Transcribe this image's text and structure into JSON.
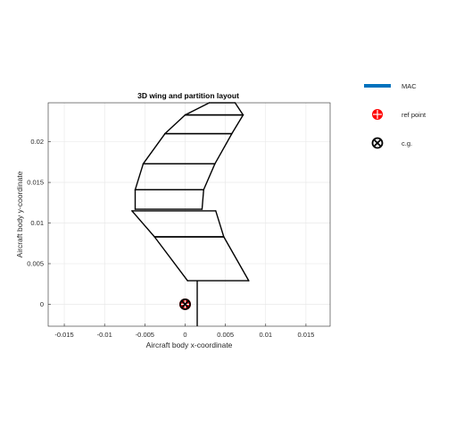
{
  "chart_data": {
    "type": "line",
    "title": "3D wing and partition layout",
    "xlabel": "Aircraft body x-coordinate",
    "ylabel": "Aircraft body y-coordinate",
    "xlim": [
      -0.017,
      0.018
    ],
    "ylim": [
      -0.0027,
      0.0248
    ],
    "xticks": [
      -0.015,
      -0.01,
      -0.005,
      0,
      0.005,
      0.01,
      0.015
    ],
    "xtick_labels": [
      "-0.015",
      "-0.01",
      "-0.005",
      "0",
      "0.005",
      "0.01",
      "0.015"
    ],
    "yticks": [
      0,
      0.005,
      0.01,
      0.015,
      0.02
    ],
    "ytick_labels": [
      "0",
      "0.005",
      "0.01",
      "0.015",
      "0.02"
    ],
    "grid": true,
    "legend_position": "outside-right",
    "legend": [
      {
        "label": "MAC",
        "marker": "thick-line",
        "color": "#0072BD"
      },
      {
        "label": "ref point",
        "marker": "circle-plus",
        "color": "#FF0000"
      },
      {
        "label": "c.g.",
        "marker": "circle-x",
        "color": "#000000"
      }
    ],
    "outline": {
      "name": "wing outline",
      "points": [
        [
          0.003,
          0.0248
        ],
        [
          0.004,
          0.0248
        ],
        [
          0.0068,
          0.0248
        ],
        [
          0.0052,
          0.0248
        ],
        [
          0.004,
          0.0248
        ],
        [
          0.003,
          0.0248
        ]
      ]
    },
    "partitions": [
      {
        "le": [
          [
            0.003,
            0.0248
          ],
          [
            0.0,
            0.0233
          ]
        ],
        "te": [
          [
            0.0062,
            0.0248
          ],
          [
            0.0072,
            0.0233
          ]
        ]
      },
      {
        "le": [
          [
            0.0,
            0.0233
          ],
          [
            -0.0025,
            0.021
          ]
        ],
        "te": [
          [
            0.0072,
            0.0233
          ],
          [
            0.0058,
            0.021
          ]
        ]
      },
      {
        "le": [
          [
            -0.0025,
            0.021
          ],
          [
            -0.0052,
            0.0173
          ]
        ],
        "te": [
          [
            0.0058,
            0.021
          ],
          [
            0.0037,
            0.0173
          ]
        ]
      },
      {
        "le": [
          [
            -0.0052,
            0.0173
          ],
          [
            -0.0062,
            0.0141
          ]
        ],
        "te": [
          [
            0.0037,
            0.0173
          ],
          [
            0.0023,
            0.0141
          ]
        ]
      },
      {
        "le": [
          [
            -0.0062,
            0.0141
          ],
          [
            -0.0062,
            0.0117
          ]
        ],
        "te": [
          [
            0.0023,
            0.0141
          ],
          [
            0.0021,
            0.0117
          ]
        ]
      },
      {
        "le": [
          [
            -0.0066,
            0.0115
          ],
          [
            -0.0038,
            0.0083
          ]
        ],
        "te": [
          [
            0.0038,
            0.0115
          ],
          [
            0.0048,
            0.0083
          ]
        ]
      },
      {
        "le": [
          [
            -0.0038,
            0.0083
          ],
          [
            0.0003,
            0.0029
          ]
        ],
        "te": [
          [
            0.0048,
            0.0083
          ],
          [
            0.0079,
            0.0029
          ]
        ]
      }
    ],
    "stations_y": [
      0.0248,
      0.0233,
      0.021,
      0.0173,
      0.0141,
      0.0117,
      0.0115,
      0.0083,
      0.0029
    ],
    "root_line": {
      "x": 0.0015,
      "y0": -0.0027,
      "y1": 0.0029
    },
    "ref_point": {
      "x": 0.0,
      "y": 0.0
    },
    "cg": {
      "x": 0.0,
      "y": 0.0
    }
  }
}
